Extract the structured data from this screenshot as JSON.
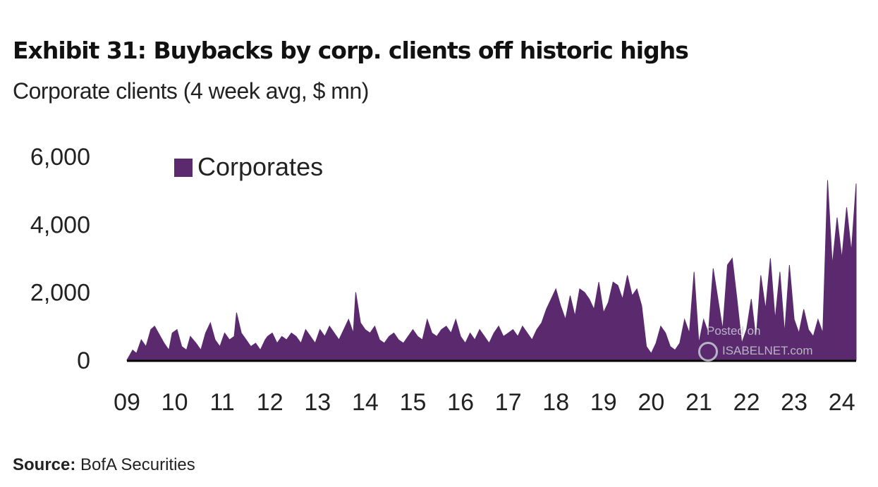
{
  "title": "Exhibit 31: Buybacks by corp. clients off historic highs",
  "subtitle": "Corporate clients (4 week avg, $ mn)",
  "source_label": "Source:",
  "source_text": " BofA Securities",
  "watermark": {
    "line1": "Posted on",
    "line2": "ISABELNET.com"
  },
  "colors": {
    "series": "#5b2a6e",
    "axis": "#000000"
  },
  "chart_data": {
    "type": "area",
    "title": "Exhibit 31: Buybacks by corp. clients off historic highs",
    "subtitle": "Corporate clients (4 week avg, $ mn)",
    "xlabel": "",
    "ylabel": "",
    "ylim": [
      0,
      6000
    ],
    "xlim": [
      2009.0,
      2024.3
    ],
    "y_ticks": [
      0,
      2000,
      4000,
      6000
    ],
    "y_tick_labels": [
      "0",
      "2,000",
      "4,000",
      "6,000"
    ],
    "x_ticks": [
      2009,
      2010,
      2011,
      2012,
      2013,
      2014,
      2015,
      2016,
      2017,
      2018,
      2019,
      2020,
      2021,
      2022,
      2023,
      2024
    ],
    "x_tick_labels": [
      "09",
      "10",
      "11",
      "12",
      "13",
      "14",
      "15",
      "16",
      "17",
      "18",
      "19",
      "20",
      "21",
      "22",
      "23",
      "24"
    ],
    "legend": {
      "position": "top-left",
      "entries": [
        "Corporates"
      ]
    },
    "grid": false,
    "series": [
      {
        "name": "Corporates",
        "color": "#5b2a6e",
        "x": [
          2009.0,
          2009.12,
          2009.2,
          2009.3,
          2009.4,
          2009.5,
          2009.58,
          2009.7,
          2009.78,
          2009.88,
          2009.95,
          2010.05,
          2010.15,
          2010.25,
          2010.33,
          2010.45,
          2010.55,
          2010.65,
          2010.75,
          2010.85,
          2010.95,
          2011.05,
          2011.15,
          2011.25,
          2011.3,
          2011.4,
          2011.5,
          2011.6,
          2011.7,
          2011.8,
          2011.9,
          2011.95,
          2012.05,
          2012.15,
          2012.25,
          2012.35,
          2012.45,
          2012.55,
          2012.65,
          2012.75,
          2012.85,
          2012.95,
          2013.05,
          2013.15,
          2013.25,
          2013.35,
          2013.45,
          2013.55,
          2013.65,
          2013.75,
          2013.8,
          2013.9,
          2014.0,
          2014.1,
          2014.2,
          2014.3,
          2014.4,
          2014.5,
          2014.6,
          2014.7,
          2014.8,
          2014.9,
          2015.0,
          2015.1,
          2015.2,
          2015.3,
          2015.4,
          2015.5,
          2015.6,
          2015.7,
          2015.8,
          2015.9,
          2016.0,
          2016.1,
          2016.2,
          2016.3,
          2016.4,
          2016.5,
          2016.6,
          2016.7,
          2016.8,
          2016.9,
          2017.0,
          2017.1,
          2017.2,
          2017.3,
          2017.4,
          2017.5,
          2017.6,
          2017.7,
          2017.8,
          2017.9,
          2018.0,
          2018.1,
          2018.2,
          2018.3,
          2018.4,
          2018.5,
          2018.6,
          2018.7,
          2018.8,
          2018.9,
          2019.0,
          2019.1,
          2019.2,
          2019.3,
          2019.4,
          2019.5,
          2019.6,
          2019.7,
          2019.8,
          2019.9,
          2020.0,
          2020.1,
          2020.2,
          2020.3,
          2020.4,
          2020.5,
          2020.6,
          2020.7,
          2020.8,
          2020.9,
          2021.0,
          2021.1,
          2021.2,
          2021.3,
          2021.4,
          2021.5,
          2021.6,
          2021.7,
          2021.8,
          2021.9,
          2022.0,
          2022.1,
          2022.2,
          2022.3,
          2022.4,
          2022.5,
          2022.6,
          2022.7,
          2022.8,
          2022.9,
          2023.0,
          2023.1,
          2023.2,
          2023.3,
          2023.4,
          2023.5,
          2023.6,
          2023.7,
          2023.8,
          2023.9,
          2024.0,
          2024.1,
          2024.2,
          2024.3
        ],
        "values": [
          0,
          300,
          200,
          600,
          400,
          900,
          1000,
          700,
          500,
          300,
          800,
          900,
          400,
          300,
          700,
          500,
          300,
          800,
          1100,
          600,
          400,
          800,
          600,
          700,
          1400,
          800,
          600,
          400,
          500,
          300,
          600,
          700,
          800,
          500,
          700,
          600,
          800,
          700,
          500,
          900,
          700,
          500,
          900,
          700,
          1000,
          800,
          600,
          900,
          1200,
          800,
          2000,
          1100,
          900,
          800,
          1000,
          600,
          500,
          700,
          800,
          600,
          500,
          700,
          900,
          700,
          600,
          1200,
          800,
          700,
          900,
          1000,
          800,
          1200,
          700,
          500,
          800,
          600,
          900,
          700,
          500,
          800,
          1000,
          700,
          800,
          900,
          700,
          1000,
          800,
          600,
          900,
          1100,
          1500,
          1800,
          2100,
          1600,
          1200,
          1900,
          1300,
          2100,
          2000,
          1800,
          1500,
          2300,
          1400,
          1700,
          2300,
          2200,
          1800,
          2500,
          1900,
          2100,
          1600,
          400,
          200,
          500,
          1000,
          800,
          400,
          300,
          500,
          1200,
          800,
          2600,
          500,
          1200,
          800,
          2700,
          1800,
          900,
          2800,
          3000,
          1800,
          500,
          900,
          1800,
          600,
          2500,
          1500,
          3000,
          1200,
          2600,
          800,
          2800,
          1200,
          800,
          1500,
          900,
          700,
          1200,
          800,
          5300,
          2800,
          4200,
          3000,
          4500,
          3200,
          5200
        ]
      }
    ]
  }
}
